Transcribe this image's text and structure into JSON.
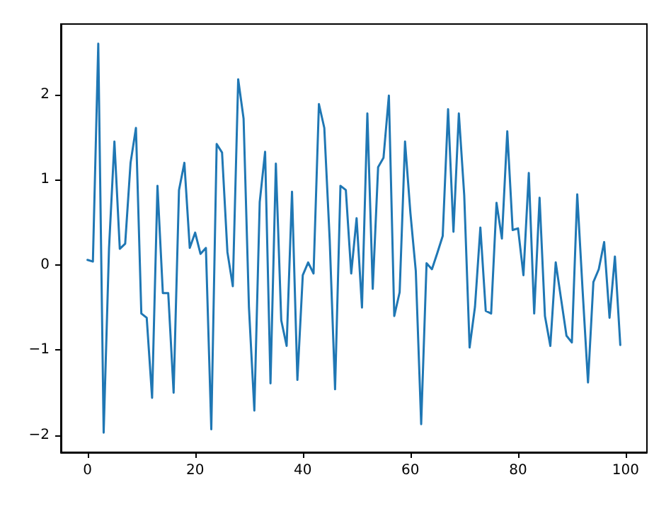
{
  "chart_data": {
    "type": "line",
    "x": [
      0,
      1,
      2,
      3,
      4,
      5,
      6,
      7,
      8,
      9,
      10,
      11,
      12,
      13,
      14,
      15,
      16,
      17,
      18,
      19,
      20,
      21,
      22,
      23,
      24,
      25,
      26,
      27,
      28,
      29,
      30,
      31,
      32,
      33,
      34,
      35,
      36,
      37,
      38,
      39,
      40,
      41,
      42,
      43,
      44,
      45,
      46,
      47,
      48,
      49,
      50,
      51,
      52,
      53,
      54,
      55,
      56,
      57,
      58,
      59,
      60,
      61,
      62,
      63,
      64,
      65,
      66,
      67,
      68,
      69,
      70,
      71,
      72,
      73,
      74,
      75,
      76,
      77,
      78,
      79,
      80,
      81,
      82,
      83,
      84,
      85,
      86,
      87,
      88,
      89,
      90,
      91,
      92,
      93,
      94,
      95,
      96,
      97,
      98,
      99
    ],
    "series": [
      {
        "color": "#1f77b4",
        "values": [
          0.06,
          0.04,
          2.6,
          -1.97,
          0.2,
          1.45,
          0.19,
          0.25,
          1.2,
          1.61,
          -0.57,
          -0.62,
          -1.56,
          0.93,
          -0.33,
          -0.33,
          -1.5,
          0.88,
          1.2,
          0.2,
          0.38,
          0.13,
          0.2,
          -1.93,
          1.42,
          1.32,
          0.15,
          -0.25,
          2.18,
          1.72,
          -0.5,
          -1.71,
          0.74,
          1.33,
          -1.39,
          1.19,
          -0.65,
          -0.95,
          0.86,
          -1.35,
          -0.12,
          0.03,
          -0.1,
          1.89,
          1.61,
          0.3,
          -1.46,
          0.93,
          0.88,
          -0.1,
          0.55,
          -0.5,
          1.78,
          -0.28,
          1.15,
          1.26,
          1.99,
          -0.6,
          -0.32,
          1.45,
          0.61,
          -0.07,
          -1.87,
          0.02,
          -0.05,
          0.14,
          0.34,
          1.83,
          0.39,
          1.78,
          0.82,
          -0.97,
          -0.49,
          0.44,
          -0.54,
          -0.57,
          0.73,
          0.31,
          1.57,
          0.41,
          0.43,
          -0.12,
          1.08,
          -0.57,
          0.79,
          -0.6,
          -0.95,
          0.03,
          -0.4,
          -0.83,
          -0.91,
          0.83,
          -0.3,
          -1.38,
          -0.2,
          -0.05,
          0.27,
          -0.62,
          0.1,
          -0.94
        ]
      }
    ],
    "xlim": [
      -4.95,
      103.95
    ],
    "xticks": [
      0,
      20,
      40,
      60,
      80,
      100
    ],
    "ylim": [
      -2.2,
      2.83
    ],
    "yticks": [
      -2,
      -1,
      0,
      1,
      2
    ],
    "grid": false,
    "marker": "none",
    "line_style": "solid"
  }
}
